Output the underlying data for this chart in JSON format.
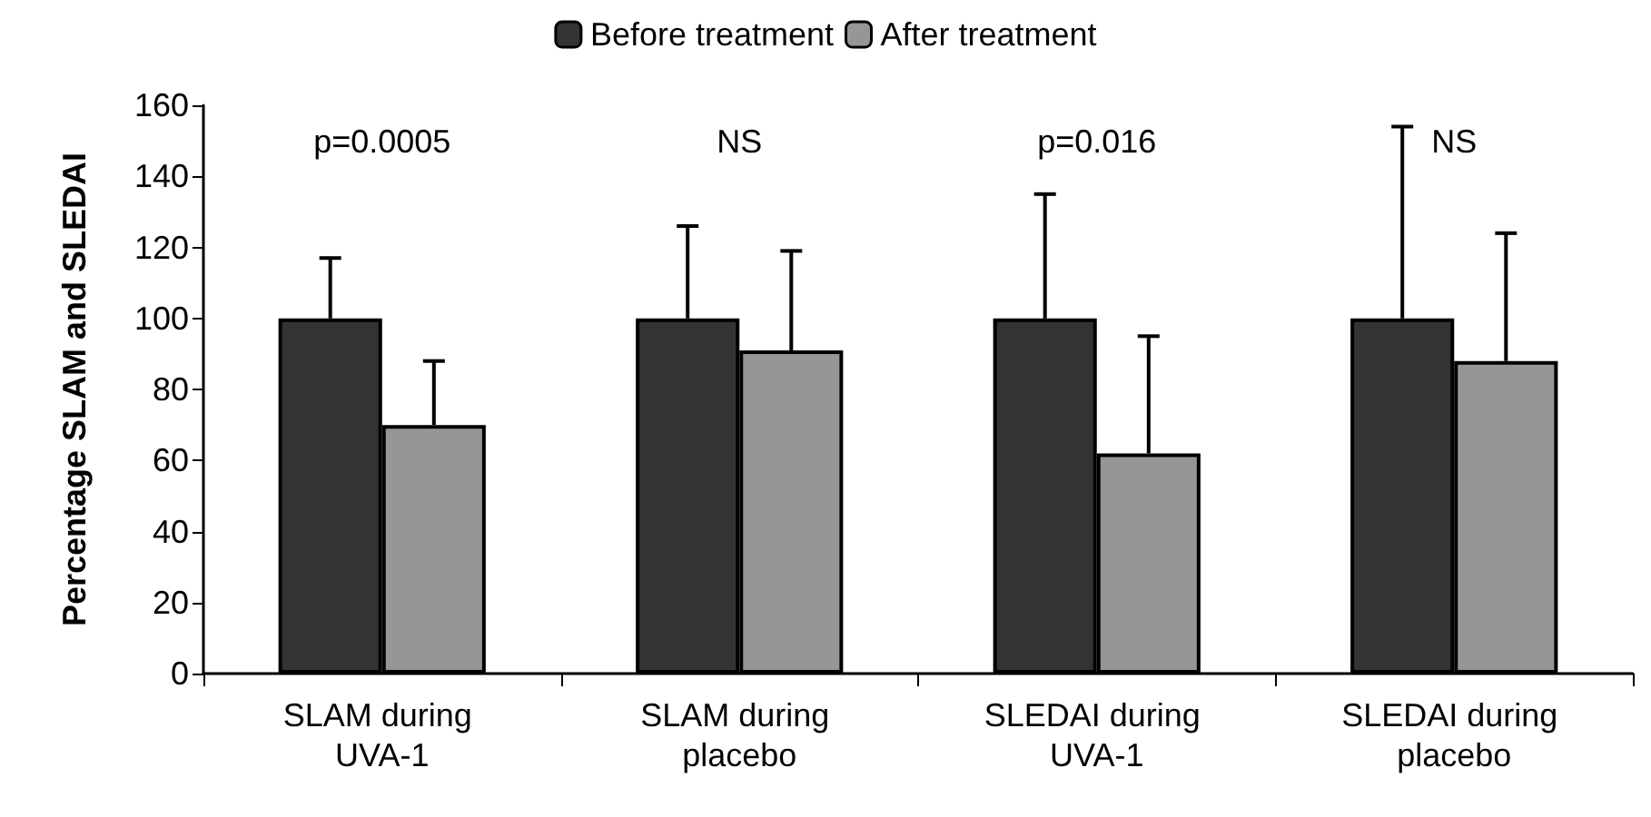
{
  "chart_data": {
    "type": "bar",
    "ylabel": "Percentage SLAM and SLEDAI",
    "categories": [
      "SLAM during UVA-1",
      "SLAM during placebo",
      "SLEDAI during UVA-1",
      "SLEDAI during placebo"
    ],
    "series": [
      {
        "name": "Before treatment",
        "color": "#333333",
        "values": [
          100,
          100,
          100,
          100
        ],
        "errors": [
          [
            100,
            117
          ],
          [
            100,
            126
          ],
          [
            100,
            135
          ],
          [
            100,
            154
          ]
        ]
      },
      {
        "name": "After treatment",
        "color": "#969696",
        "values": [
          70,
          91,
          62,
          88
        ],
        "errors": [
          [
            70,
            88
          ],
          [
            91,
            119
          ],
          [
            62,
            95
          ],
          [
            88,
            124
          ]
        ]
      }
    ],
    "ylim": [
      0,
      160
    ],
    "yticks": [
      0,
      20,
      40,
      60,
      80,
      100,
      120,
      140,
      160
    ],
    "grid": false,
    "legend": "top",
    "annotations": [
      "p=0.0005",
      "NS",
      "p=0.016",
      "NS"
    ]
  }
}
